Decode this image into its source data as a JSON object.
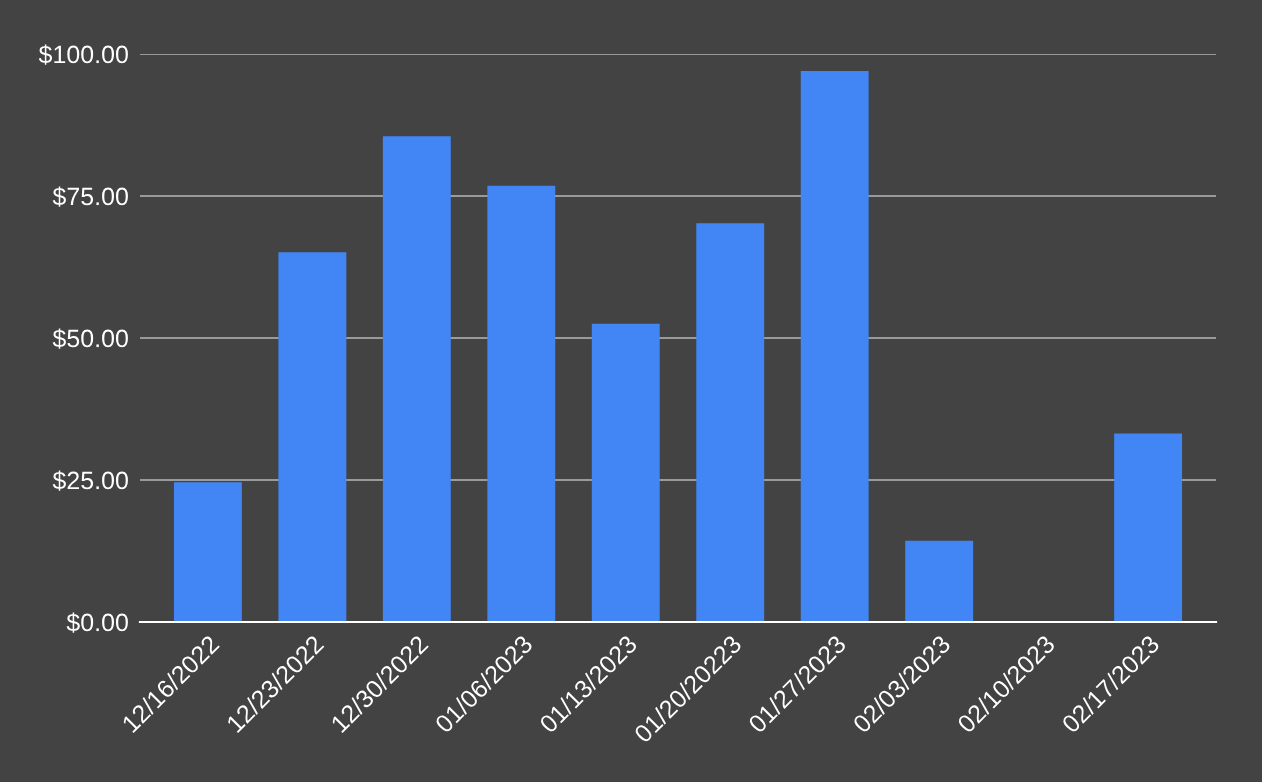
{
  "chart_data": {
    "type": "bar",
    "categories": [
      "12/16/2022",
      "12/23/2022",
      "12/30/2022",
      "01/06/2023",
      "01/13/2023",
      "01/20/20223",
      "01/27/2023",
      "02/03/2023",
      "02/10/2023",
      "02/17/2023"
    ],
    "values": [
      24.6,
      65.1,
      85.5,
      76.8,
      52.5,
      70.2,
      97.0,
      14.3,
      0,
      33.2
    ],
    "color": "#4285f4",
    "ylim": [
      0,
      100
    ],
    "yticks": [
      {
        "value": 0,
        "label": "$0.00"
      },
      {
        "value": 25,
        "label": "$25.00"
      },
      {
        "value": 50,
        "label": "$50.00"
      },
      {
        "value": 75,
        "label": "$75.00"
      },
      {
        "value": 100,
        "label": "$100.00"
      }
    ],
    "grid": "y"
  }
}
